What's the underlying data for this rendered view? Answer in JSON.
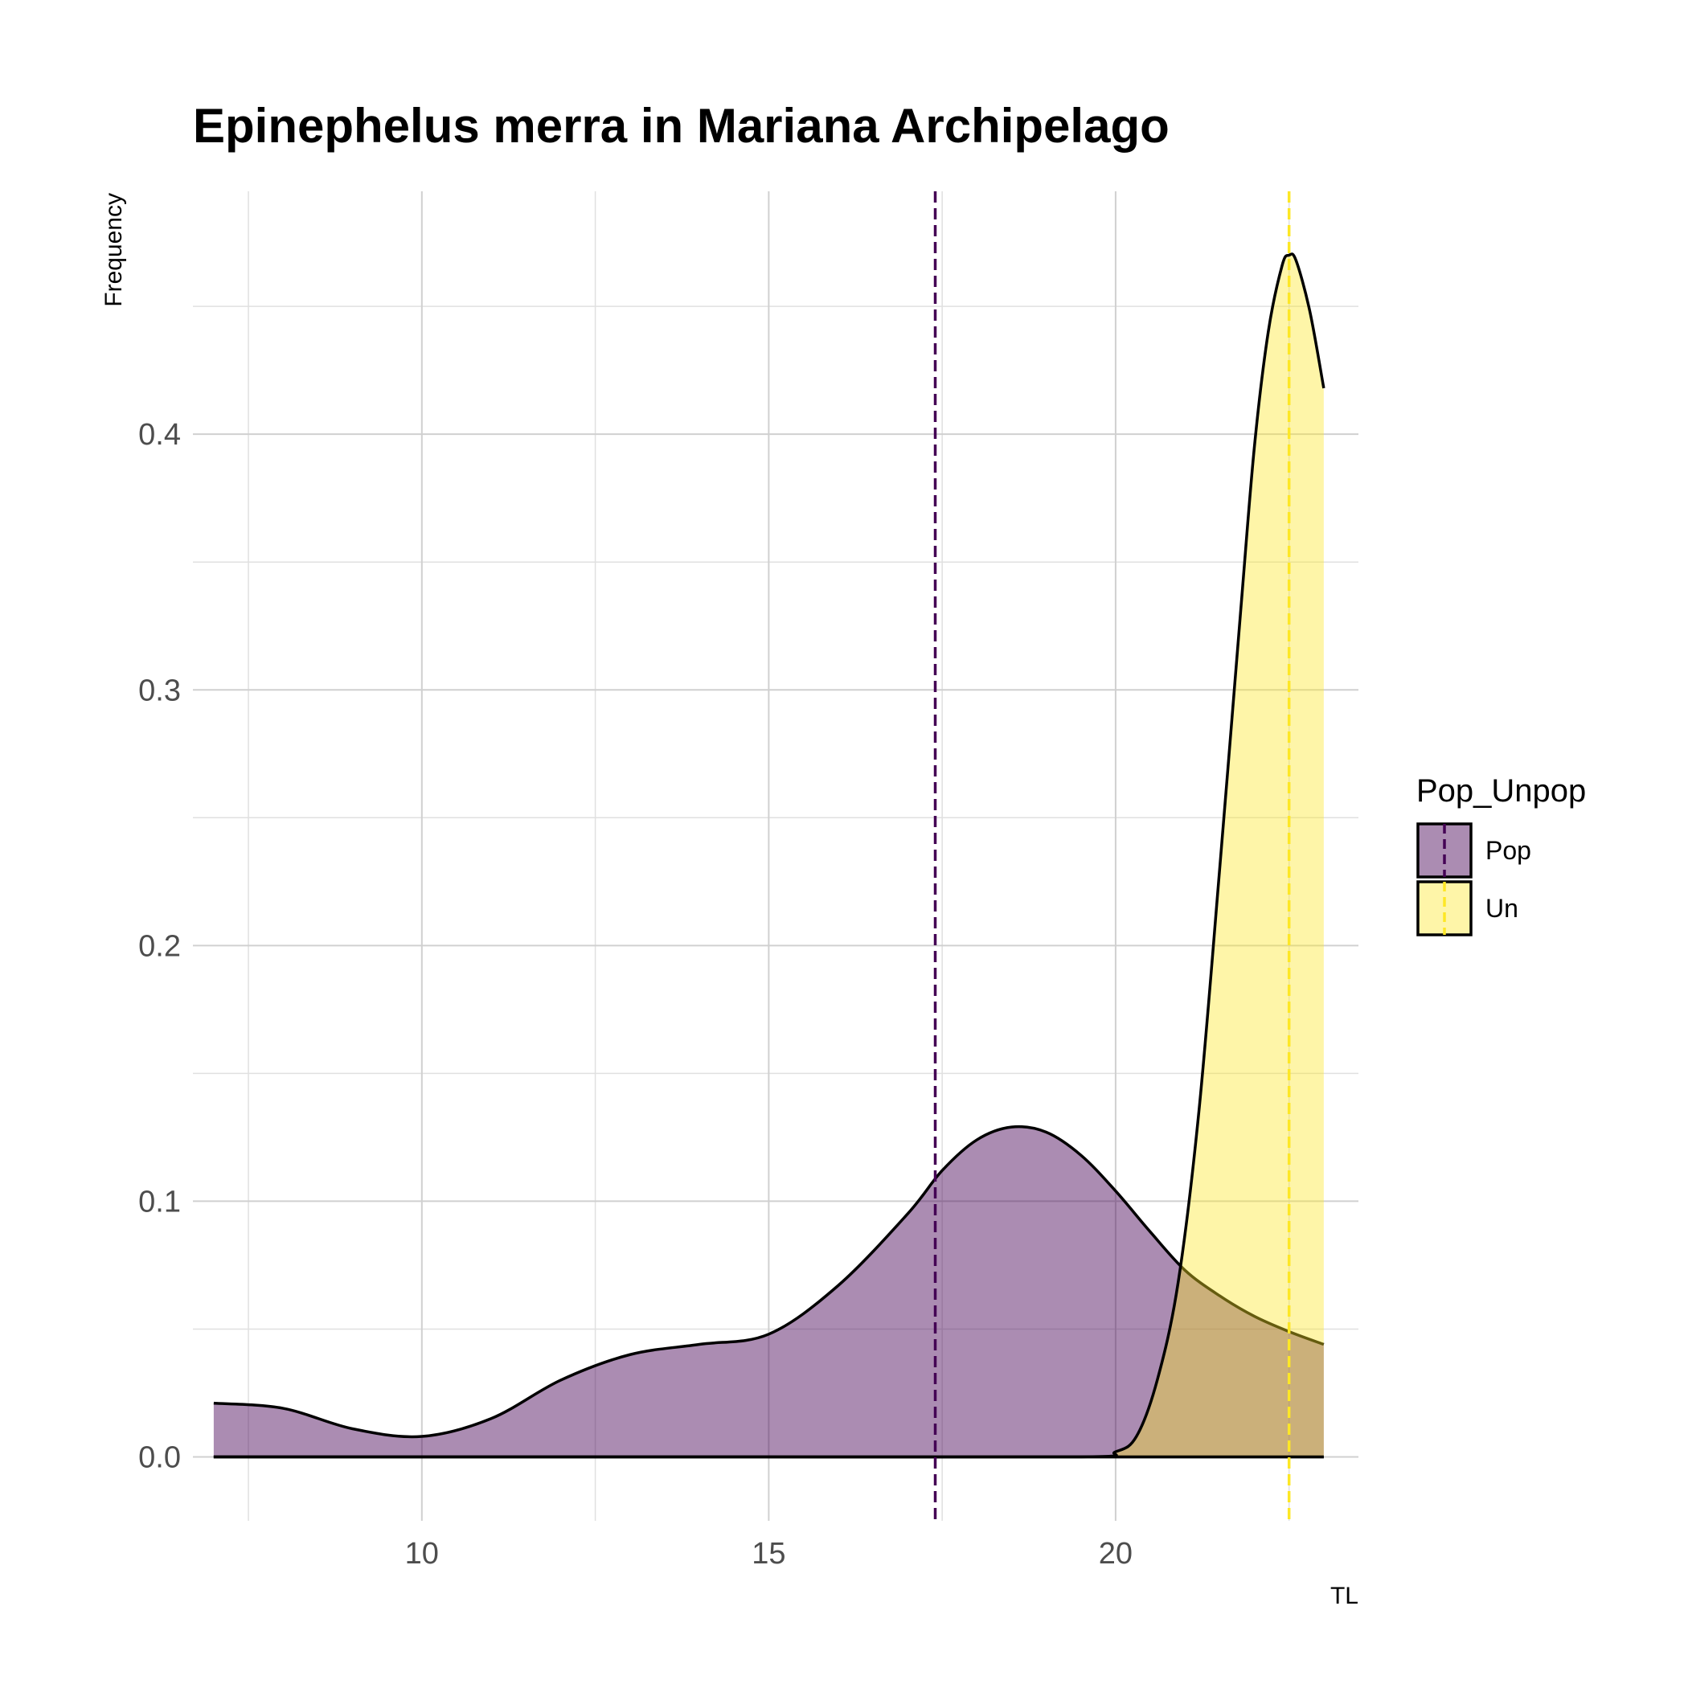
{
  "chart_data": {
    "type": "area",
    "title": "Epinephelus merra in Mariana Archipelago",
    "xlabel": "TL",
    "ylabel": "Frequency",
    "xlim": [
      6.7,
      23.5
    ],
    "ylim": [
      -0.025,
      0.495
    ],
    "x_ticks": [
      10,
      15,
      20
    ],
    "x_tick_labels": [
      "10",
      "15",
      "20"
    ],
    "y_ticks": [
      0.0,
      0.1,
      0.2,
      0.3,
      0.4
    ],
    "y_tick_labels": [
      "0.0",
      "0.1",
      "0.2",
      "0.3",
      "0.4"
    ],
    "grid": true,
    "legend": {
      "title": "Pop_Unpop",
      "position": "right"
    },
    "series": [
      {
        "name": "Pop",
        "color": "#440154",
        "fill": "rgba(68,1,84,0.45)",
        "mean_line_x": 17.4,
        "x": [
          7.0,
          8.0,
          9.0,
          10.0,
          11.0,
          12.0,
          13.0,
          14.0,
          15.0,
          16.0,
          17.0,
          17.5,
          18.0,
          18.5,
          19.0,
          19.5,
          20.0,
          20.5,
          21.0,
          21.5,
          22.0,
          22.5,
          23.0
        ],
        "y": [
          0.021,
          0.019,
          0.011,
          0.008,
          0.015,
          0.03,
          0.04,
          0.044,
          0.048,
          0.067,
          0.095,
          0.112,
          0.124,
          0.129,
          0.127,
          0.118,
          0.104,
          0.088,
          0.073,
          0.063,
          0.055,
          0.049,
          0.044
        ]
      },
      {
        "name": "Un",
        "color": "#FDE725",
        "fill": "rgba(253,231,37,0.40)",
        "mean_line_x": 22.5,
        "x": [
          7.0,
          10.0,
          15.0,
          19.5,
          20.0,
          20.3,
          20.6,
          20.9,
          21.2,
          21.5,
          21.8,
          22.0,
          22.2,
          22.4,
          22.5,
          22.6,
          22.8,
          23.0
        ],
        "y": [
          0.0,
          0.0,
          0.0,
          0.0,
          0.002,
          0.008,
          0.03,
          0.068,
          0.135,
          0.23,
          0.33,
          0.395,
          0.44,
          0.466,
          0.47,
          0.468,
          0.448,
          0.418
        ]
      }
    ]
  }
}
